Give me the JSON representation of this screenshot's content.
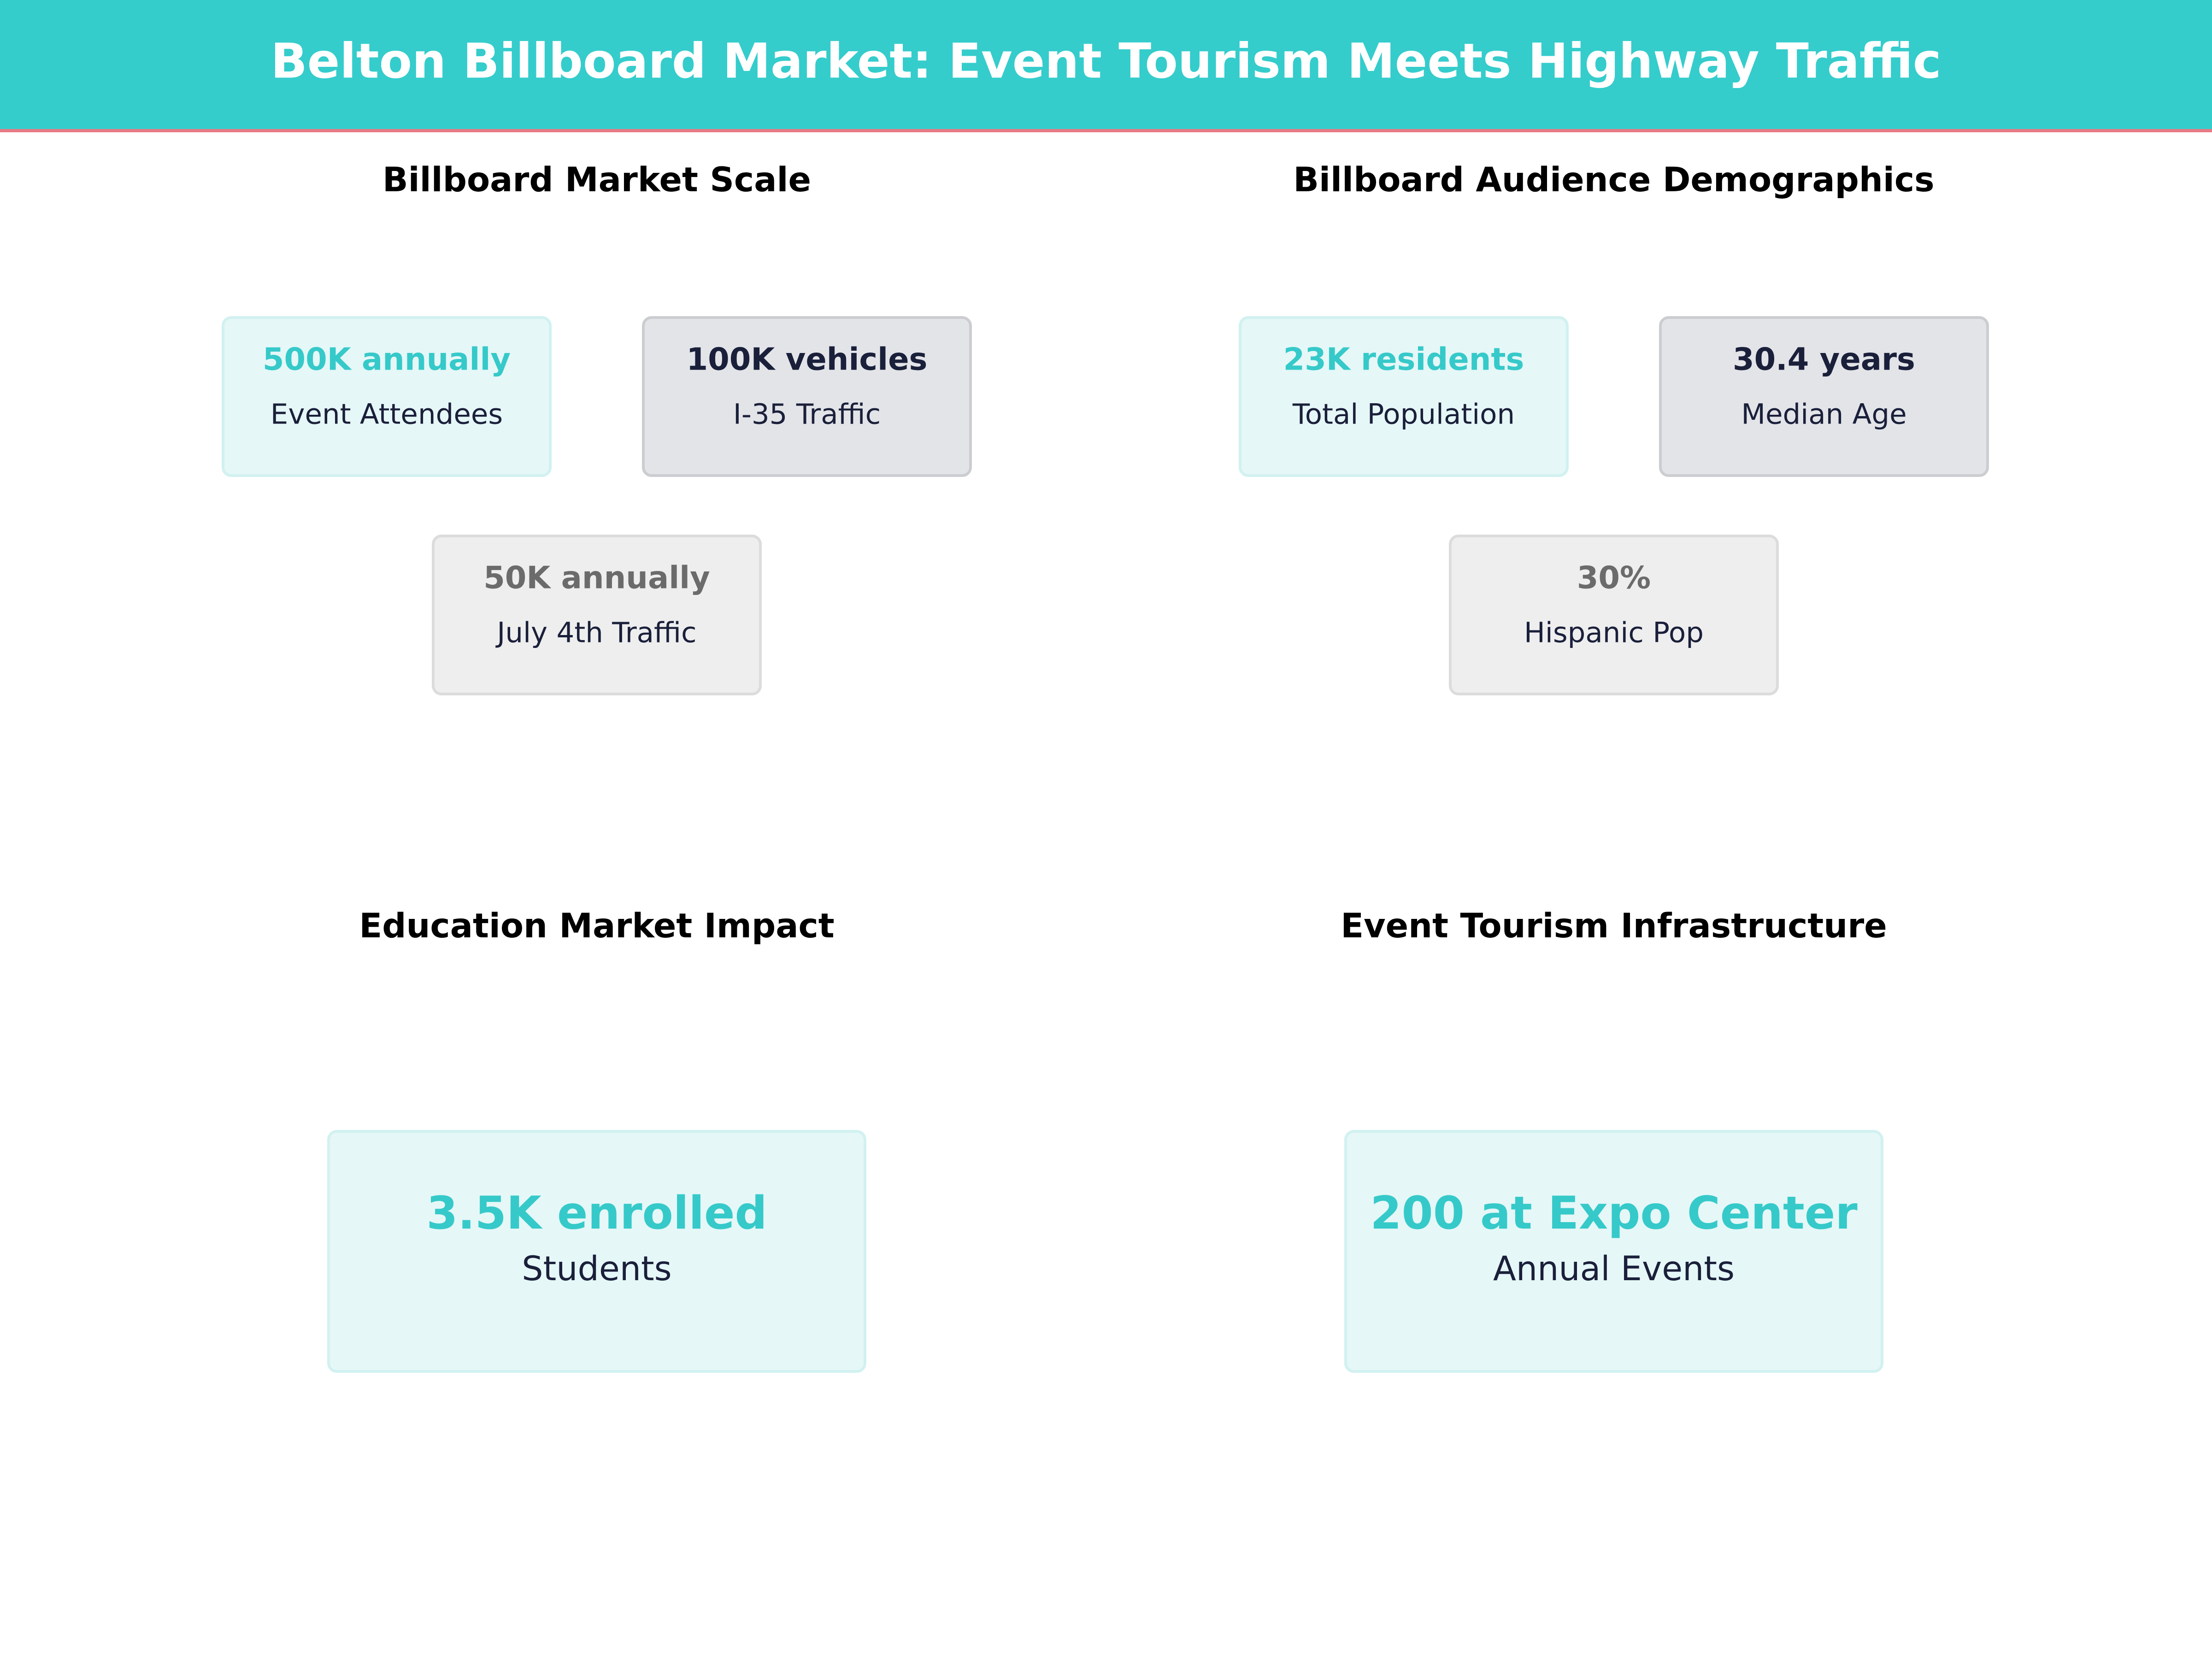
{
  "header": {
    "title": "Belton Billboard Market: Event Tourism Meets Highway Traffic"
  },
  "panels": [
    {
      "title": "Billboard Market Scale",
      "cards": [
        {
          "value": "500K annually",
          "label": "Event Attendees"
        },
        {
          "value": "100K vehicles",
          "label": "I-35 Traffic"
        },
        {
          "value": "50K annually",
          "label": "July 4th Traffic"
        }
      ]
    },
    {
      "title": "Billboard Audience Demographics",
      "cards": [
        {
          "value": "23K residents",
          "label": "Total Population"
        },
        {
          "value": "30.4 years",
          "label": "Median Age"
        },
        {
          "value": "30%",
          "label": "Hispanic Pop"
        }
      ]
    },
    {
      "title": "Education Market Impact",
      "cards": [
        {
          "value": "3.5K enrolled",
          "label": "Students"
        }
      ]
    },
    {
      "title": "Event Tourism Infrastructure",
      "cards": [
        {
          "value": "200 at Expo Center",
          "label": "Annual Events"
        }
      ]
    }
  ]
}
